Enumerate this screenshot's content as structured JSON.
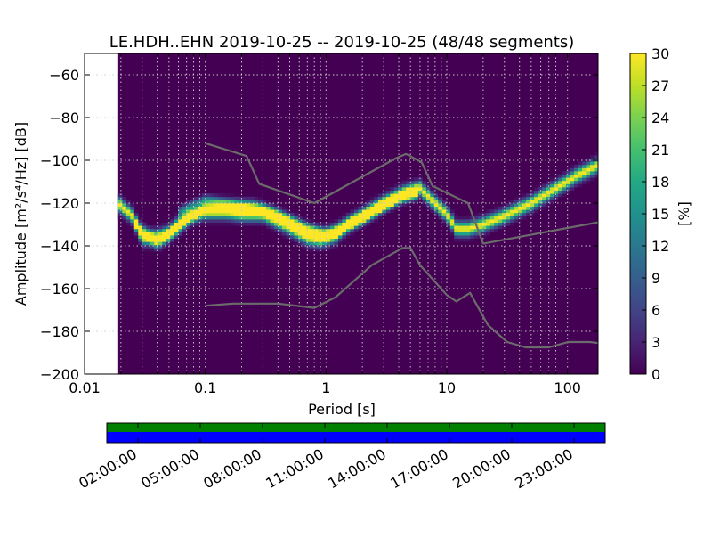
{
  "chart_data": [
    {
      "type": "heatmap",
      "title": "LE.HDH..EHN   2019-10-25 -- 2019-10-25  (48/48 segments)",
      "xlabel": "Period [s]",
      "ylabel": "Amplitude [m²/s⁴/Hz] [dB]",
      "xscale": "log",
      "xlim": [
        0.01,
        179
      ],
      "ylim": [
        -200,
        -50
      ],
      "x_ticks": [
        {
          "value": 0.01,
          "label": "0.01"
        },
        {
          "value": 0.1,
          "label": "0.1"
        },
        {
          "value": 1,
          "label": "1"
        },
        {
          "value": 10,
          "label": "10"
        },
        {
          "value": 100,
          "label": "100"
        }
      ],
      "y_ticks": [
        {
          "value": -60,
          "label": "−60"
        },
        {
          "value": -80,
          "label": "−80"
        },
        {
          "value": -100,
          "label": "−100"
        },
        {
          "value": -120,
          "label": "−120"
        },
        {
          "value": -140,
          "label": "−140"
        },
        {
          "value": -160,
          "label": "−160"
        },
        {
          "value": -180,
          "label": "−180"
        },
        {
          "value": -200,
          "label": "−200"
        }
      ],
      "grid": true,
      "data_start_period": 0.019,
      "colorbar": {
        "label": "[%]",
        "range": [
          0,
          30
        ],
        "ticks": [
          "0",
          "3",
          "6",
          "9",
          "12",
          "15",
          "18",
          "21",
          "24",
          "27",
          "30"
        ],
        "colormap": "viridis"
      },
      "ridges": [
        {
          "points": [
            [
              0.019,
              -120
            ],
            [
              0.025,
              -126
            ],
            [
              0.03,
              -136
            ],
            [
              0.04,
              -136
            ],
            [
              0.05,
              -134
            ],
            [
              0.07,
              -126
            ],
            [
              0.1,
              -124
            ],
            [
              0.15,
              -124
            ],
            [
              0.2,
              -125
            ],
            [
              0.3,
              -125
            ],
            [
              0.45,
              -130
            ],
            [
              0.7,
              -136
            ],
            [
              0.9,
              -137
            ],
            [
              1.2,
              -135
            ],
            [
              1.5,
              -130
            ],
            [
              2,
              -126
            ],
            [
              3,
              -120
            ],
            [
              4.5,
              -115
            ],
            [
              6,
              -113
            ],
            [
              8,
              -120
            ],
            [
              10,
              -125
            ],
            [
              12,
              -132
            ],
            [
              15,
              -132
            ],
            [
              20,
              -130
            ],
            [
              30,
              -126
            ],
            [
              50,
              -120
            ],
            [
              80,
              -113
            ],
            [
              120,
              -107
            ],
            [
              179,
              -102
            ]
          ],
          "width": 3,
          "peak": 30
        },
        {
          "points": [
            [
              0.025,
              -128
            ],
            [
              0.04,
              -139
            ],
            [
              0.06,
              -132
            ],
            [
              0.1,
              -121
            ],
            [
              0.15,
              -121
            ],
            [
              0.25,
              -121
            ],
            [
              0.4,
              -125
            ],
            [
              0.7,
              -132
            ],
            [
              1,
              -134
            ],
            [
              1.5,
              -130
            ],
            [
              2.5,
              -123
            ],
            [
              4,
              -117
            ],
            [
              6,
              -114
            ]
          ],
          "width": 2.5,
          "peak": 16
        },
        {
          "points": [
            [
              0.06,
              -124
            ],
            [
              0.1,
              -118
            ],
            [
              0.2,
              -121
            ],
            [
              0.35,
              -124
            ],
            [
              0.6,
              -130
            ],
            [
              1,
              -135
            ],
            [
              2,
              -128
            ],
            [
              4,
              -118
            ],
            [
              6,
              -116
            ]
          ],
          "width": 2,
          "peak": 11
        }
      ],
      "noise_models": [
        {
          "name": "",
          "points": [
            [
              0.1,
              -92
            ],
            [
              0.22,
              -98
            ],
            [
              0.28,
              -111
            ],
            [
              0.8,
              -120
            ],
            [
              3.8,
              -99
            ],
            [
              4.6,
              -97
            ],
            [
              6.2,
              -101
            ],
            [
              7.6,
              -112
            ],
            [
              15,
              -120
            ],
            [
              20,
              -139
            ],
            [
              179,
              -129
            ]
          ]
        },
        {
          "name": "",
          "points": [
            [
              0.1,
              -168
            ],
            [
              0.17,
              -167
            ],
            [
              0.4,
              -167
            ],
            [
              0.8,
              -169
            ],
            [
              1.2,
              -164
            ],
            [
              2.4,
              -149
            ],
            [
              4.3,
              -141
            ],
            [
              5,
              -141
            ],
            [
              6,
              -149
            ],
            [
              10,
              -163
            ],
            [
              12,
              -166
            ],
            [
              15.6,
              -162
            ],
            [
              21.9,
              -177
            ],
            [
              31.6,
              -185
            ],
            [
              45,
              -187.5
            ],
            [
              70,
              -187.5
            ],
            [
              101,
              -185
            ],
            [
              154,
              -185
            ],
            [
              179,
              -185.5
            ]
          ]
        }
      ]
    },
    {
      "type": "timeline",
      "x_ticks": [
        "02:00:00",
        "05:00:00",
        "08:00:00",
        "11:00:00",
        "14:00:00",
        "17:00:00",
        "20:00:00",
        "23:00:00"
      ],
      "x_tick_hours": [
        2,
        5,
        8,
        11,
        14,
        17,
        20,
        23
      ],
      "span_hours": [
        0.5,
        24.5
      ],
      "colors": {
        "top": "#008000",
        "bottom": "#0000ff"
      }
    }
  ]
}
